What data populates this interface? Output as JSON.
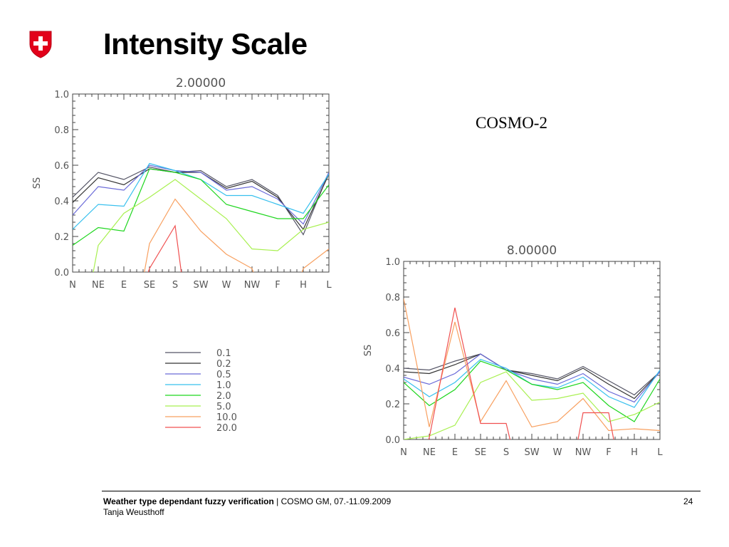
{
  "slide": {
    "title": "Intensity Scale",
    "model_label": "COSMO-2",
    "page_number": "24",
    "footer": {
      "bold_text": "Weather type dependant fuzzy verification",
      "separator": " | ",
      "event_text": "COSMO GM, 07.-11.09.2009",
      "author": "Tanja Weusthoff"
    },
    "logo": {
      "icon": "swiss-cross-shield-icon",
      "color": "#e2001a"
    }
  },
  "chart_data": [
    {
      "type": "line",
      "title": "2.00000",
      "xlabel": "",
      "ylabel": "SS",
      "ylim": [
        0,
        1
      ],
      "yticks": [
        "0.0",
        "0.2",
        "0.4",
        "0.6",
        "0.8",
        "1.0"
      ],
      "categories": [
        "N",
        "NE",
        "E",
        "SE",
        "S",
        "SW",
        "W",
        "NW",
        "F",
        "H",
        "L"
      ],
      "grid": false,
      "series": [
        {
          "name": "0.1",
          "color": "#555566",
          "values": [
            0.42,
            0.56,
            0.52,
            0.59,
            0.56,
            0.57,
            0.48,
            0.52,
            0.43,
            0.21,
            0.56
          ]
        },
        {
          "name": "0.2",
          "color": "#333333",
          "values": [
            0.39,
            0.53,
            0.49,
            0.58,
            0.56,
            0.56,
            0.47,
            0.51,
            0.42,
            0.24,
            0.55
          ]
        },
        {
          "name": "0.5",
          "color": "#6a6ad8",
          "values": [
            0.32,
            0.48,
            0.46,
            0.6,
            0.57,
            0.56,
            0.46,
            0.48,
            0.41,
            0.27,
            0.56
          ]
        },
        {
          "name": "1.0",
          "color": "#38c0ee",
          "values": [
            0.24,
            0.38,
            0.37,
            0.61,
            0.57,
            0.52,
            0.43,
            0.43,
            0.38,
            0.33,
            0.55
          ]
        },
        {
          "name": "2.0",
          "color": "#1ed61e",
          "values": [
            0.15,
            0.25,
            0.23,
            0.58,
            0.56,
            0.52,
            0.38,
            0.34,
            0.3,
            0.3,
            0.49
          ]
        },
        {
          "name": "5.0",
          "color": "#a8f050",
          "values": [
            null,
            0.15,
            0.33,
            0.42,
            0.52,
            0.41,
            0.3,
            0.13,
            0.12,
            0.24,
            0.28
          ]
        },
        {
          "name": "10.0",
          "color": "#f8a060",
          "values": [
            null,
            null,
            null,
            0.16,
            0.41,
            0.23,
            0.1,
            0.02,
            null,
            0.02,
            0.13
          ]
        },
        {
          "name": "20.0",
          "color": "#f05050",
          "values": [
            null,
            null,
            null,
            0.02,
            0.26,
            null,
            null,
            null,
            null,
            null,
            null
          ]
        }
      ]
    },
    {
      "type": "line",
      "title": "8.00000",
      "xlabel": "",
      "ylabel": "SS",
      "ylim": [
        0,
        1
      ],
      "yticks": [
        "0.0",
        "0.2",
        "0.4",
        "0.6",
        "0.8",
        "1.0"
      ],
      "categories": [
        "N",
        "NE",
        "E",
        "SE",
        "S",
        "SW",
        "W",
        "NW",
        "F",
        "H",
        "L"
      ],
      "grid": false,
      "series": [
        {
          "name": "0.1",
          "color": "#555566",
          "values": [
            0.4,
            0.39,
            0.44,
            0.48,
            0.39,
            0.37,
            0.34,
            0.41,
            0.33,
            0.25,
            0.38
          ]
        },
        {
          "name": "0.2",
          "color": "#333333",
          "values": [
            0.38,
            0.37,
            0.42,
            0.48,
            0.39,
            0.36,
            0.33,
            0.4,
            0.31,
            0.23,
            0.38
          ]
        },
        {
          "name": "0.5",
          "color": "#6a6ad8",
          "values": [
            0.35,
            0.31,
            0.37,
            0.48,
            0.39,
            0.34,
            0.31,
            0.37,
            0.27,
            0.21,
            0.38
          ]
        },
        {
          "name": "1.0",
          "color": "#38c0ee",
          "values": [
            0.34,
            0.24,
            0.32,
            0.45,
            0.4,
            0.31,
            0.29,
            0.35,
            0.24,
            0.18,
            0.39
          ]
        },
        {
          "name": "2.0",
          "color": "#1ed61e",
          "values": [
            0.32,
            0.19,
            0.28,
            0.44,
            0.39,
            0.31,
            0.28,
            0.32,
            0.19,
            0.1,
            0.34
          ]
        },
        {
          "name": "5.0",
          "color": "#a8f050",
          "values": [
            0.0,
            0.02,
            0.08,
            0.32,
            0.38,
            0.22,
            0.23,
            0.26,
            0.1,
            0.14,
            0.21
          ]
        },
        {
          "name": "10.0",
          "color": "#f8a060",
          "values": [
            0.79,
            0.07,
            0.66,
            0.1,
            0.33,
            0.07,
            0.1,
            0.23,
            0.05,
            0.06,
            0.05
          ]
        },
        {
          "name": "20.0",
          "color": "#f05050",
          "values": [
            null,
            0.01,
            0.74,
            0.09,
            0.09,
            null,
            null,
            0.15,
            0.15,
            null,
            null
          ]
        }
      ]
    }
  ]
}
